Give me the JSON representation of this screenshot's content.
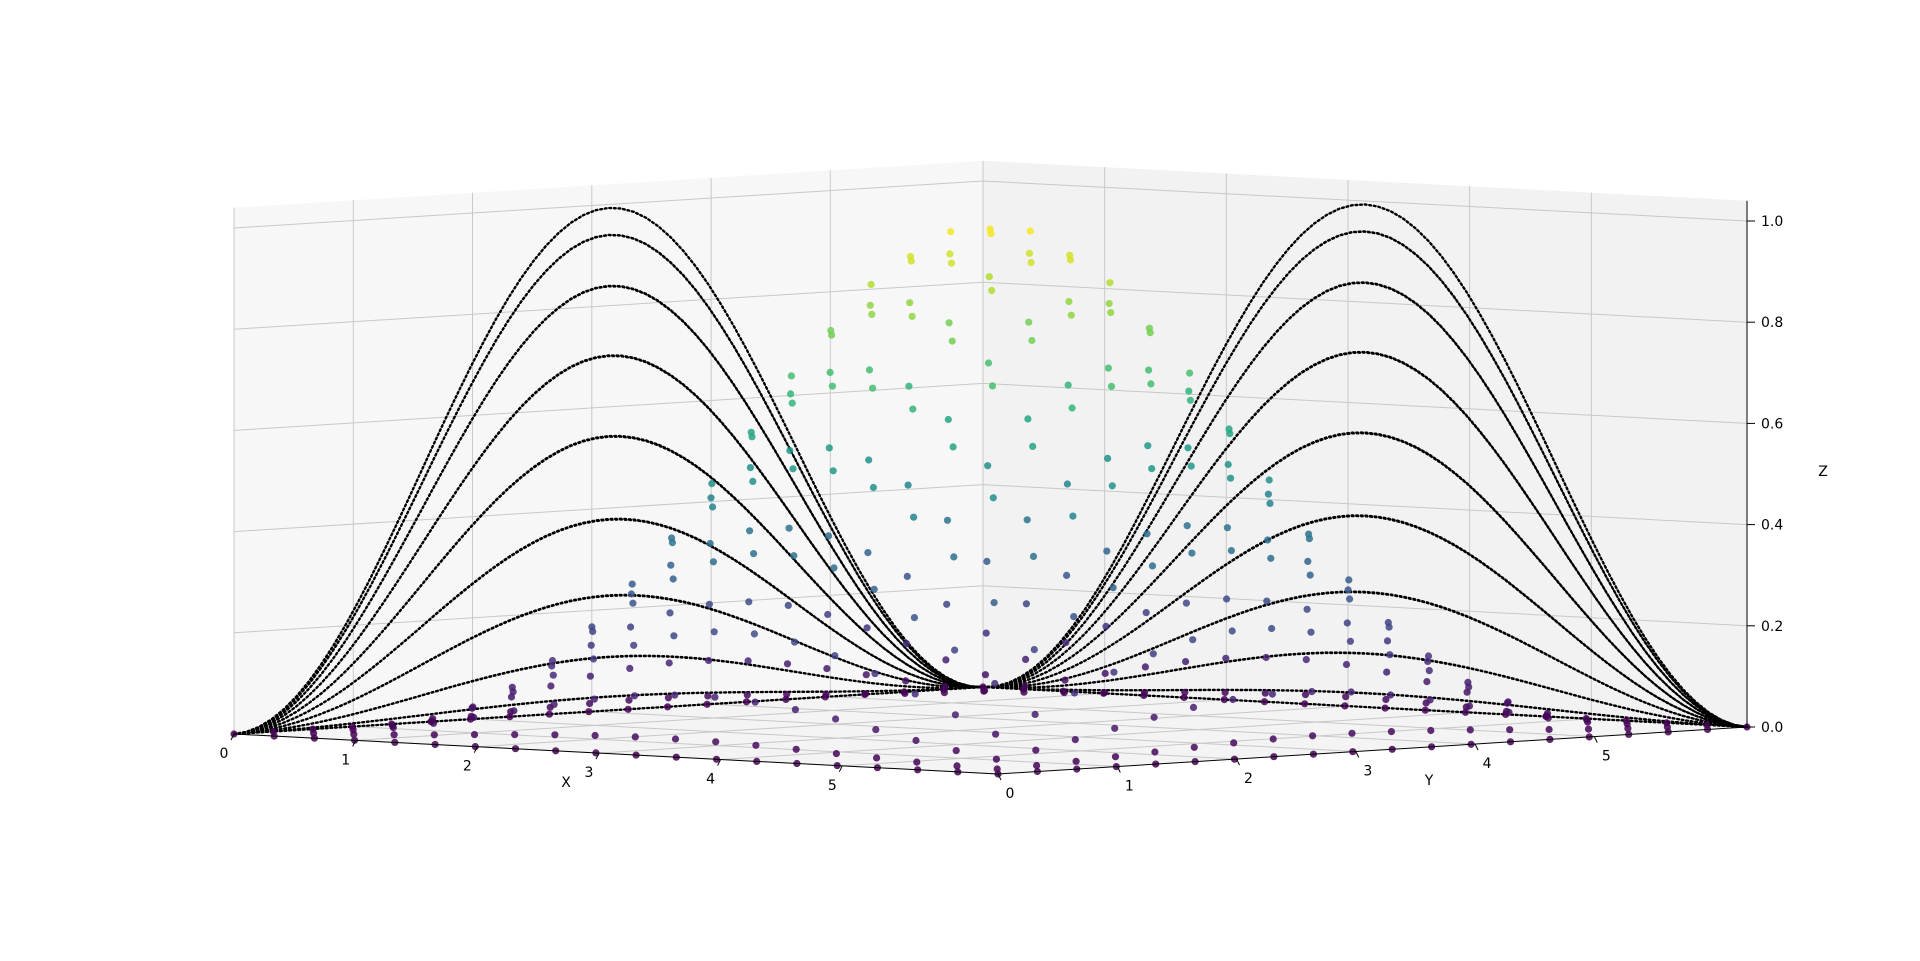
{
  "chart_data": {
    "type": "scatter",
    "subtype": "3d-scatter-with-projections",
    "title": "",
    "xlabel": "X",
    "ylabel": "Y",
    "zlabel": "Z",
    "xlim": [
      0,
      6.28
    ],
    "ylim": [
      0,
      6.28
    ],
    "zlim": [
      0,
      1.0
    ],
    "x_ticks": [
      "0",
      "1",
      "2",
      "3",
      "4",
      "5"
    ],
    "y_ticks": [
      "0",
      "1",
      "2",
      "3",
      "4",
      "5"
    ],
    "z_ticks": [
      "0.0",
      "0.2",
      "0.4",
      "0.6",
      "0.8",
      "1.0"
    ],
    "grid": true,
    "legend": "none",
    "colormap": "viridis",
    "grid_n": 20,
    "surface": "Z = sin(X/2)^2 * sin(Y/2)^2",
    "series": [
      {
        "kind": "scatter-3d",
        "color_by": "z"
      },
      {
        "kind": "projection-dotted-lines",
        "plane": "x-z (back wall, X = 0)",
        "color": "#000000"
      },
      {
        "kind": "projection-dotted-lines",
        "plane": "y-z (back wall, Y = 6.28)",
        "color": "#000000"
      }
    ],
    "colors": {
      "pane_left": "#f7f7f7",
      "pane_right": "#f2f2f2",
      "pane_floor": "#f4f4f4",
      "grid": "#c8c8c8",
      "projection": "#000000"
    }
  }
}
